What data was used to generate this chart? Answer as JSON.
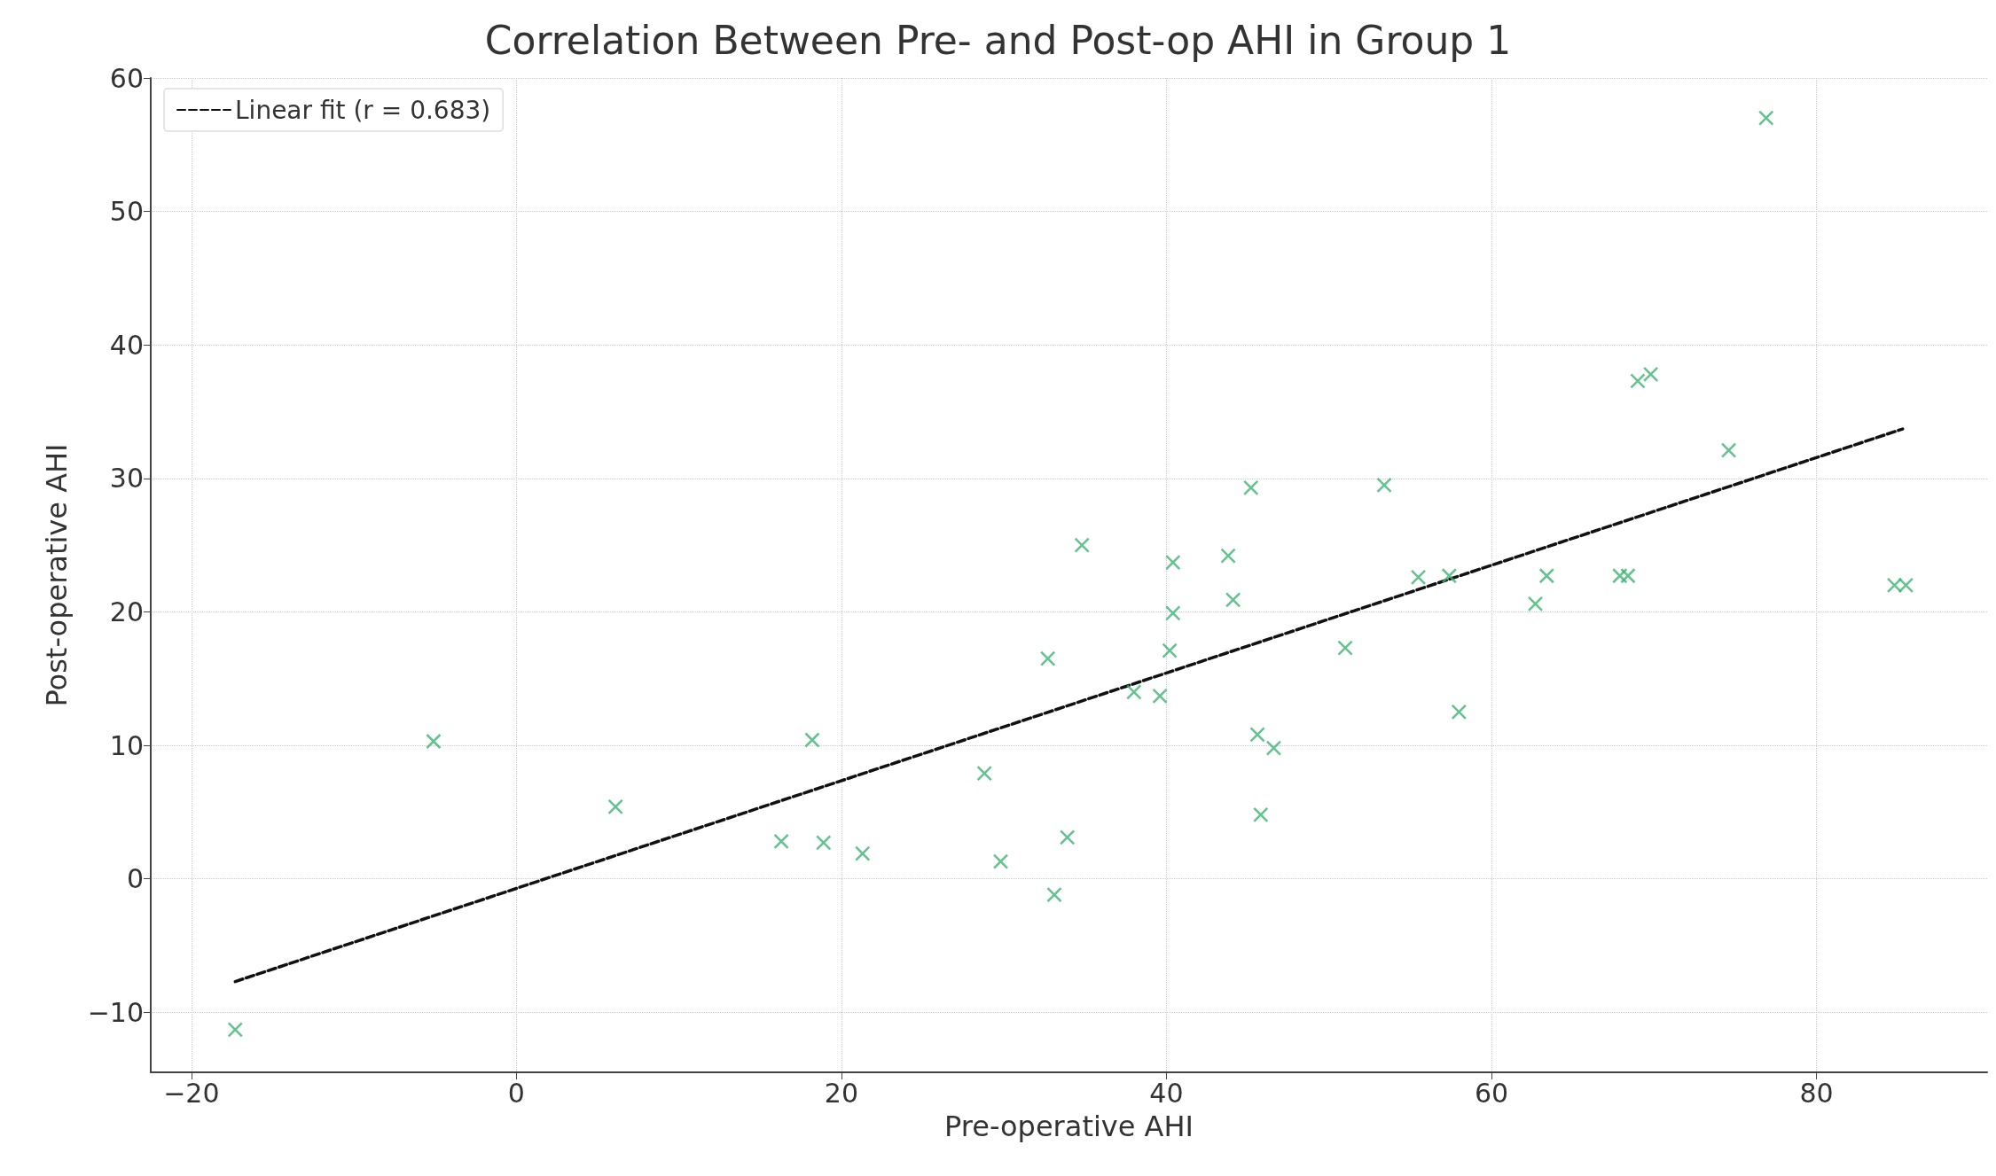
{
  "chart_data": {
    "type": "scatter",
    "title": "Correlation Between Pre- and Post-op AHI in Group 1",
    "xlabel": "Pre-operative AHI",
    "ylabel": "Post-operative AHI",
    "xlim": [
      -22.5,
      90.5
    ],
    "ylim": [
      -14.5,
      60
    ],
    "xticks": [
      -20,
      0,
      20,
      40,
      60,
      80
    ],
    "yticks": [
      -10,
      0,
      10,
      20,
      30,
      40,
      50,
      60
    ],
    "grid": true,
    "legend": "top left",
    "series": [
      {
        "color": "#3cb371",
        "marker": "cross",
        "x": [
          -17.3,
          -5.1,
          6.1,
          16.3,
          18.2,
          18.9,
          21.3,
          28.8,
          29.8,
          32.7,
          33.1,
          33.9,
          34.8,
          38.0,
          39.6,
          40.2,
          40.4,
          40.4,
          43.8,
          44.1,
          45.2,
          45.6,
          45.8,
          46.6,
          51.0,
          53.4,
          55.5,
          57.4,
          58.0,
          62.7,
          63.4,
          67.9,
          68.4,
          69.0,
          69.8,
          74.6,
          76.9,
          84.8,
          85.5
        ],
        "values": [
          -11.3,
          10.3,
          5.4,
          2.8,
          10.4,
          2.7,
          1.9,
          7.9,
          1.3,
          16.5,
          -1.2,
          3.1,
          25.0,
          14.0,
          13.7,
          17.1,
          19.9,
          23.7,
          24.2,
          20.9,
          29.3,
          10.8,
          4.8,
          9.8,
          17.3,
          29.5,
          22.6,
          22.7,
          12.5,
          20.6,
          22.7,
          22.7,
          22.7,
          37.3,
          37.8,
          32.1,
          57.0,
          22.0,
          22.0
        ]
      },
      {
        "type": "line",
        "name": "Linear fit (r = 0.683)",
        "color": "#111111",
        "line_style": "dashed",
        "marker": "none",
        "x": [
          -17.3,
          85.3
        ],
        "values": [
          -7.7,
          33.7
        ]
      }
    ]
  }
}
